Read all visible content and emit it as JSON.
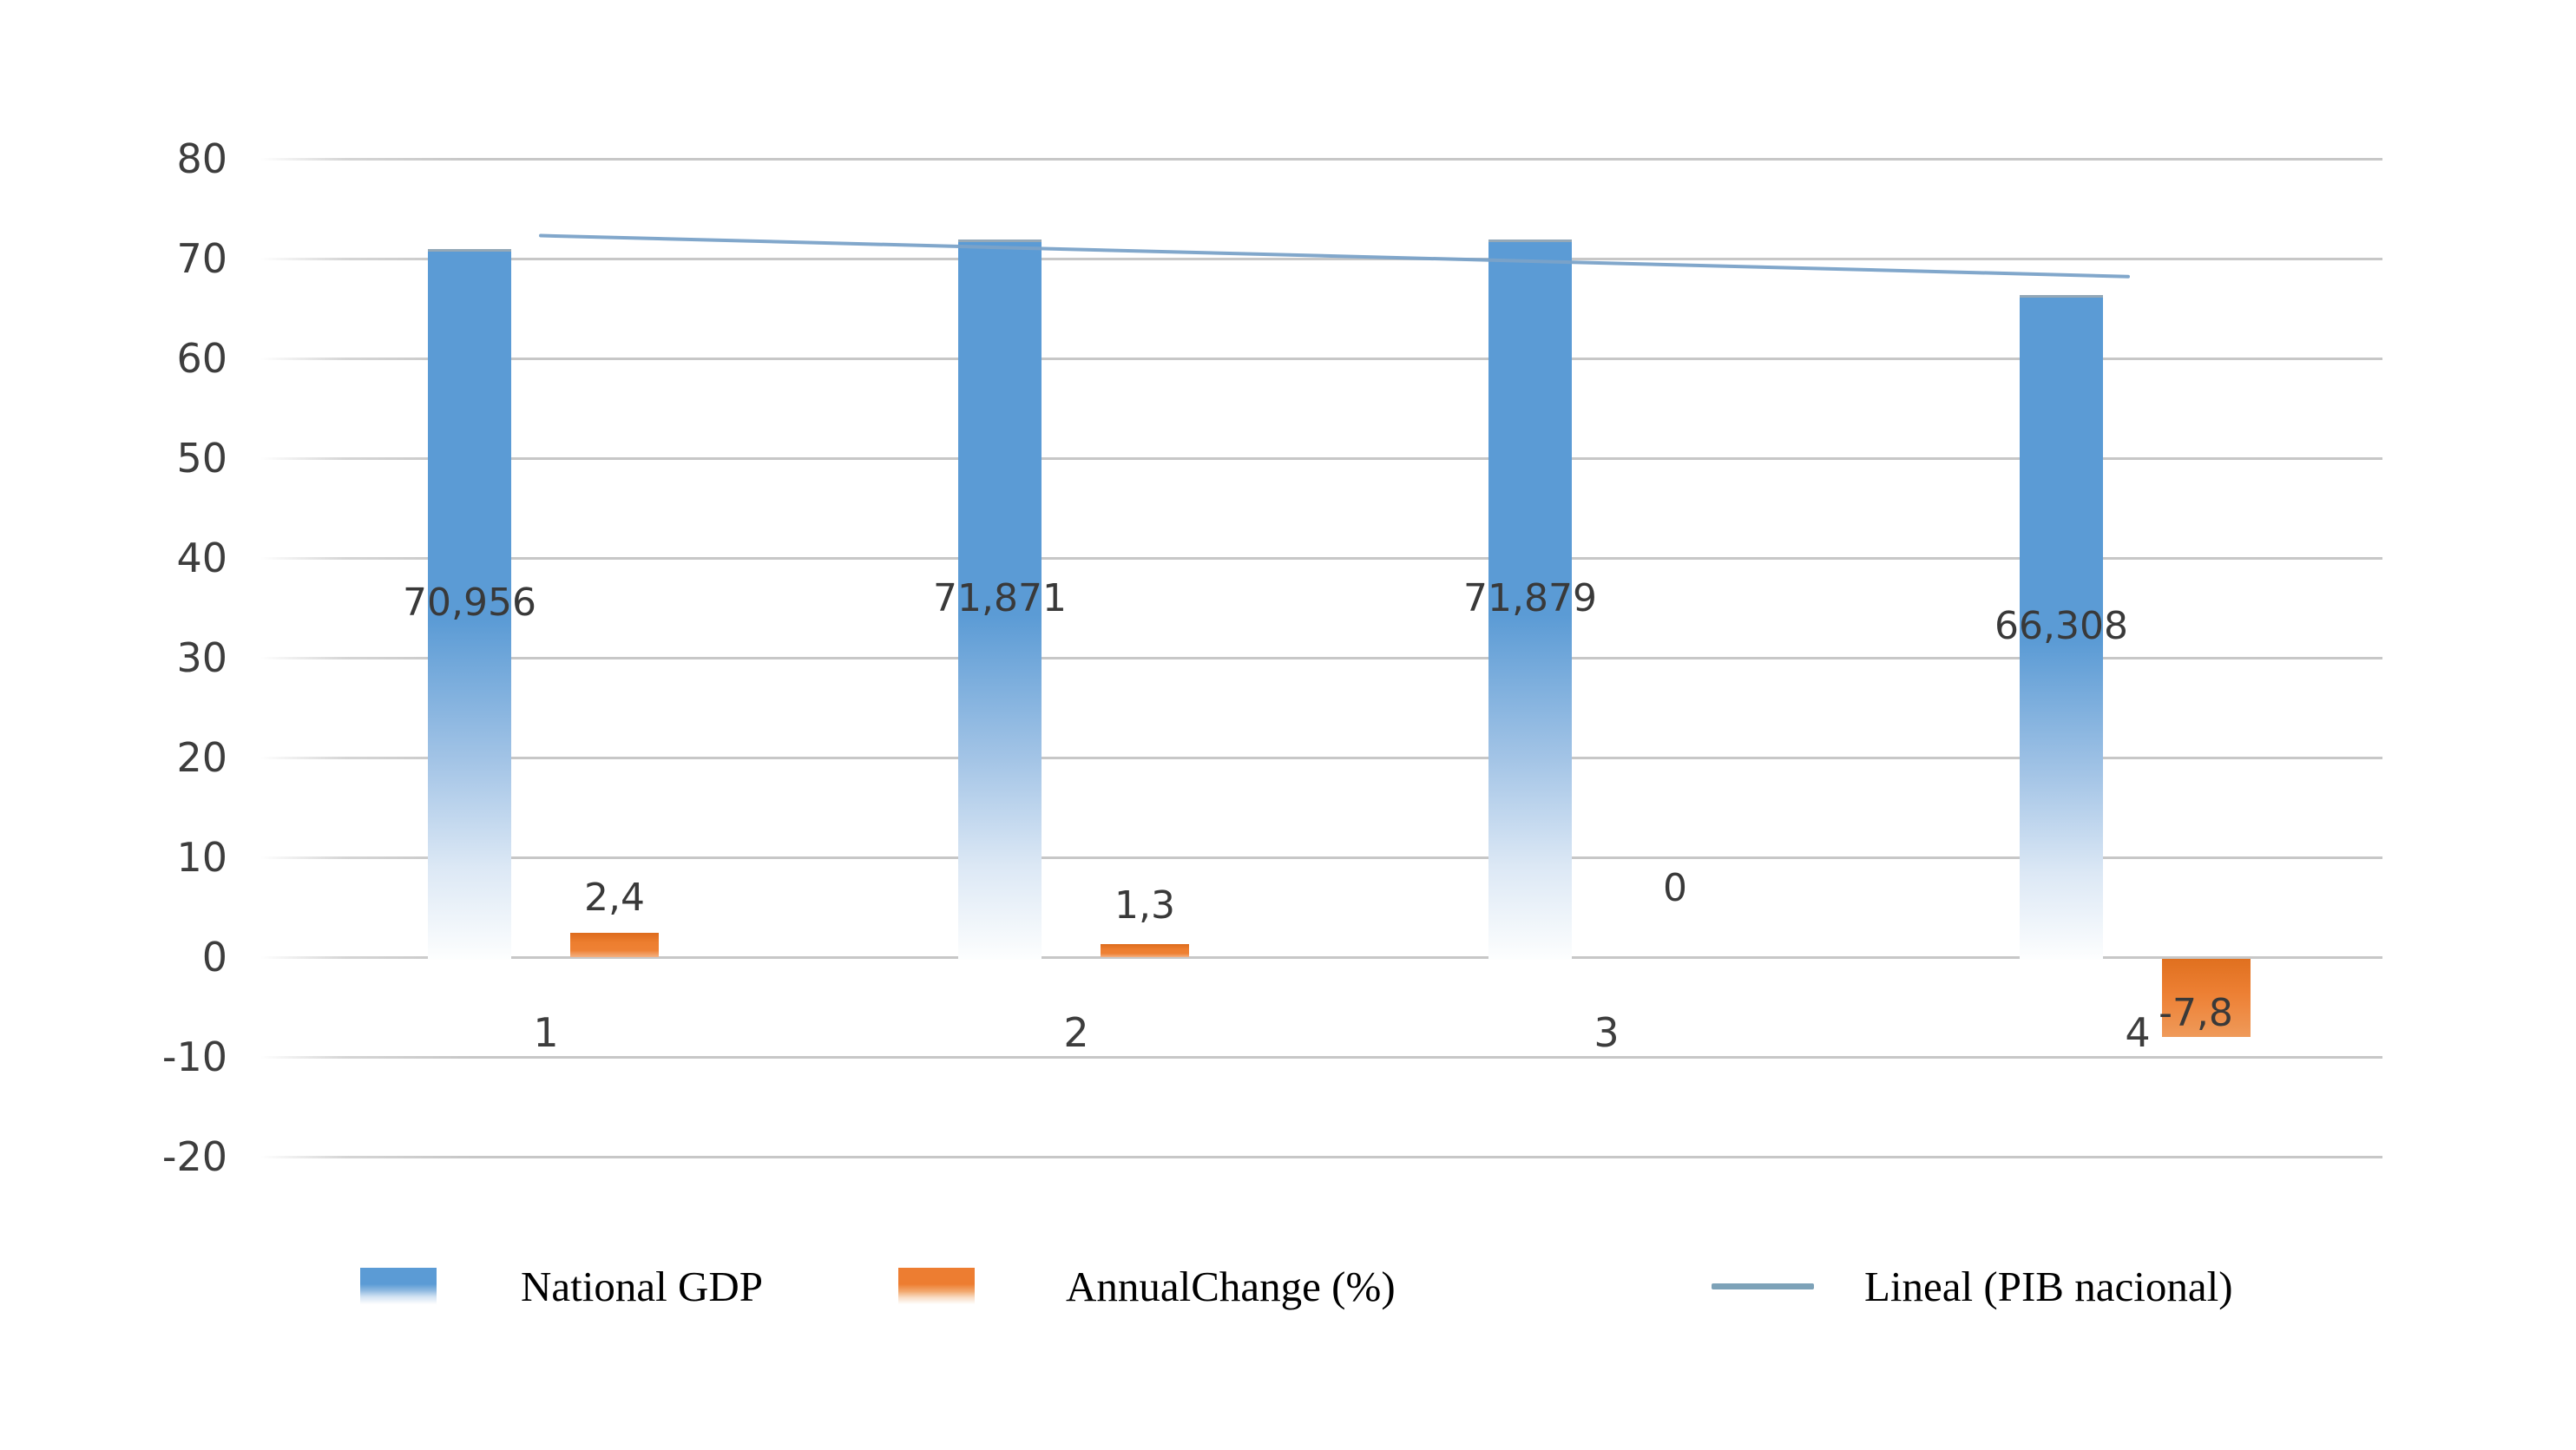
{
  "chart_data": {
    "type": "bar",
    "title": "",
    "categories": [
      "1",
      "2",
      "3",
      "4"
    ],
    "series": [
      {
        "name": "National GDP",
        "kind": "bar",
        "color": "#5b9bd5",
        "values": [
          70.956,
          71.871,
          71.879,
          66.308
        ],
        "labels": [
          "70,956",
          "71,871",
          "71,879",
          "66,308"
        ]
      },
      {
        "name": "AnnualChange (%)",
        "kind": "bar",
        "color": "#ed7d31",
        "values": [
          2.4,
          1.3,
          0,
          -7.8
        ],
        "labels": [
          "2,4",
          "1,3",
          "0",
          "-7,8"
        ]
      },
      {
        "name": "Lineal (PIB nacional)",
        "kind": "trendline",
        "color": "#7ba3c9",
        "endpoints": [
          72.3,
          68.2
        ]
      }
    ],
    "y_axis": {
      "min": -20,
      "max": 80,
      "step": 10,
      "ticks": [
        "80",
        "70",
        "60",
        "50",
        "40",
        "30",
        "20",
        "10",
        "0",
        "-10",
        "-20"
      ]
    },
    "x_axis": {
      "labels": [
        "1",
        "2",
        "3",
        "4"
      ]
    },
    "grid": true,
    "legend_position": "bottom",
    "decimal_separator": ","
  }
}
